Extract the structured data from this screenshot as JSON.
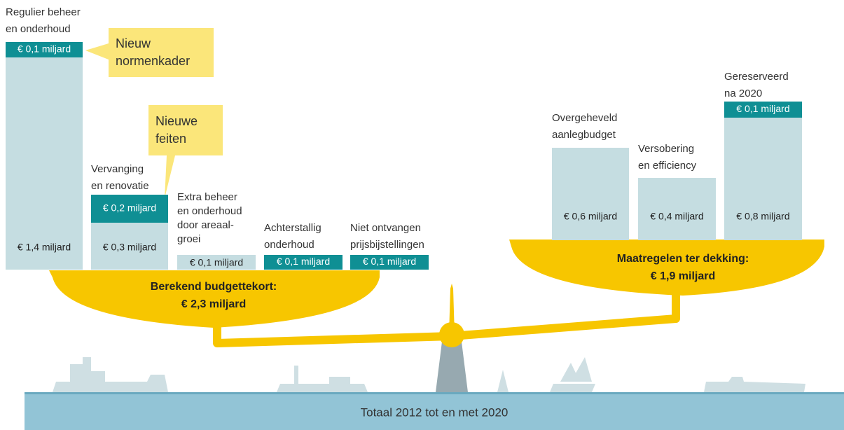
{
  "left": {
    "items": [
      {
        "label": [
          "Regulier beheer",
          "en onderhoud"
        ],
        "top": "€ 0,1 miljard",
        "bottom": "€ 1,4 miljard"
      },
      {
        "label": [
          "Vervanging",
          "en renovatie"
        ],
        "top": "€ 0,2 miljard",
        "bottom": "€ 0,3 miljard"
      },
      {
        "label": [
          "Extra beheer",
          "en onderhoud",
          "door areaal-",
          "groei"
        ],
        "bottom": "€ 0,1 miljard"
      },
      {
        "label": [
          "Achterstallig",
          "onderhoud"
        ],
        "top": "€ 0,1 miljard"
      },
      {
        "label": [
          "Niet ontvangen",
          "prijsbijstellingen"
        ],
        "top": "€ 0,1 miljard"
      }
    ],
    "callouts": [
      [
        "Nieuw",
        "normenkader"
      ],
      [
        "Nieuwe",
        "feiten"
      ]
    ],
    "total": [
      "Berekend budgettekort:",
      "€ 2,3 miljard"
    ]
  },
  "right": {
    "items": [
      {
        "label": [
          "Overgeheveld",
          "aanlegbudget"
        ],
        "bottom": "€ 0,6 miljard"
      },
      {
        "label": [
          "Versobering",
          "en efficiency"
        ],
        "bottom": "€ 0,4 miljard"
      },
      {
        "label": [
          "Gereserveerd",
          "na 2020"
        ],
        "top": "€ 0,1 miljard",
        "bottom": "€ 0,8 miljard"
      }
    ],
    "total": [
      "Maatregelen ter dekking:",
      "€ 1,9 miljard"
    ]
  },
  "footer": "Totaal 2012 tot en met 2020"
}
